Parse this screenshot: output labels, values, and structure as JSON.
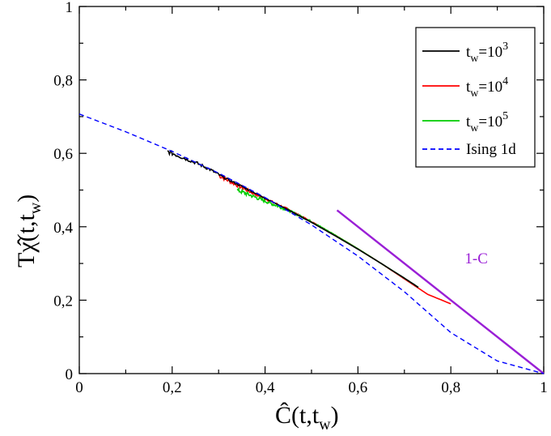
{
  "chart_data": {
    "type": "line",
    "title": "",
    "xlabel": {
      "main": "Ĉ(t,t",
      "sub": "w",
      "end": ")"
    },
    "ylabel": {
      "main": "Tχ̂(t,t",
      "sub": "w",
      "end": ")"
    },
    "xlim": [
      0,
      1
    ],
    "ylim": [
      0,
      1
    ],
    "xticks": [
      "0",
      "0,2",
      "0,4",
      "0,6",
      "0,8",
      "1"
    ],
    "yticks": [
      "0",
      "0,2",
      "0,4",
      "0,6",
      "0,8",
      "1"
    ],
    "series": [
      {
        "name": "t_w=10^3",
        "legend": {
          "base": "t",
          "sub": "w",
          "mid": "=10",
          "sup": "3"
        },
        "color": "#000000",
        "style": "noisy",
        "x": [
          0.19,
          0.22,
          0.25,
          0.28,
          0.31,
          0.35,
          0.4,
          0.45,
          0.5,
          0.55,
          0.6,
          0.65,
          0.7,
          0.73
        ],
        "y": [
          0.605,
          0.59,
          0.575,
          0.557,
          0.535,
          0.51,
          0.478,
          0.446,
          0.412,
          0.376,
          0.339,
          0.3,
          0.26,
          0.235
        ]
      },
      {
        "name": "t_w=10^4",
        "legend": {
          "base": "t",
          "sub": "w",
          "mid": "=10",
          "sup": "4"
        },
        "color": "#ff0000",
        "style": "noisy",
        "x": [
          0.3,
          0.33,
          0.36,
          0.4,
          0.45,
          0.5,
          0.55,
          0.6,
          0.65,
          0.7,
          0.75,
          0.8
        ],
        "y": [
          0.54,
          0.52,
          0.5,
          0.477,
          0.447,
          0.414,
          0.378,
          0.34,
          0.3,
          0.258,
          0.216,
          0.19
        ]
      },
      {
        "name": "t_w=10^5",
        "legend": {
          "base": "t",
          "sub": "w",
          "mid": "=10",
          "sup": "5"
        },
        "color": "#00cc00",
        "style": "noisy",
        "x": [
          0.34,
          0.37,
          0.4,
          0.45,
          0.5,
          0.55,
          0.6,
          0.65,
          0.7,
          0.73
        ],
        "y": [
          0.5,
          0.485,
          0.47,
          0.445,
          0.414,
          0.378,
          0.34,
          0.3,
          0.26,
          0.235
        ]
      },
      {
        "name": "Ising 1d",
        "legend": {
          "base": "Ising 1d"
        },
        "color": "#0000ff",
        "style": "dashed",
        "x": [
          0,
          0.1,
          0.2,
          0.3,
          0.4,
          0.5,
          0.6,
          0.7,
          0.8,
          0.9,
          1.0
        ],
        "y": [
          0.7071,
          0.6587,
          0.6054,
          0.5461,
          0.4798,
          0.4051,
          0.3201,
          0.2229,
          0.1116,
          0.0345,
          0
        ]
      },
      {
        "name": "1-C",
        "color": "#9a1fd6",
        "style": "solid",
        "x": [
          0.555,
          1.0
        ],
        "y": [
          0.445,
          0.0
        ]
      }
    ],
    "annotations": [
      {
        "text": "1-C",
        "x": 0.83,
        "y": 0.3,
        "color": "#9a1fd6"
      }
    ],
    "legend_position": "top-right",
    "grid": false
  }
}
